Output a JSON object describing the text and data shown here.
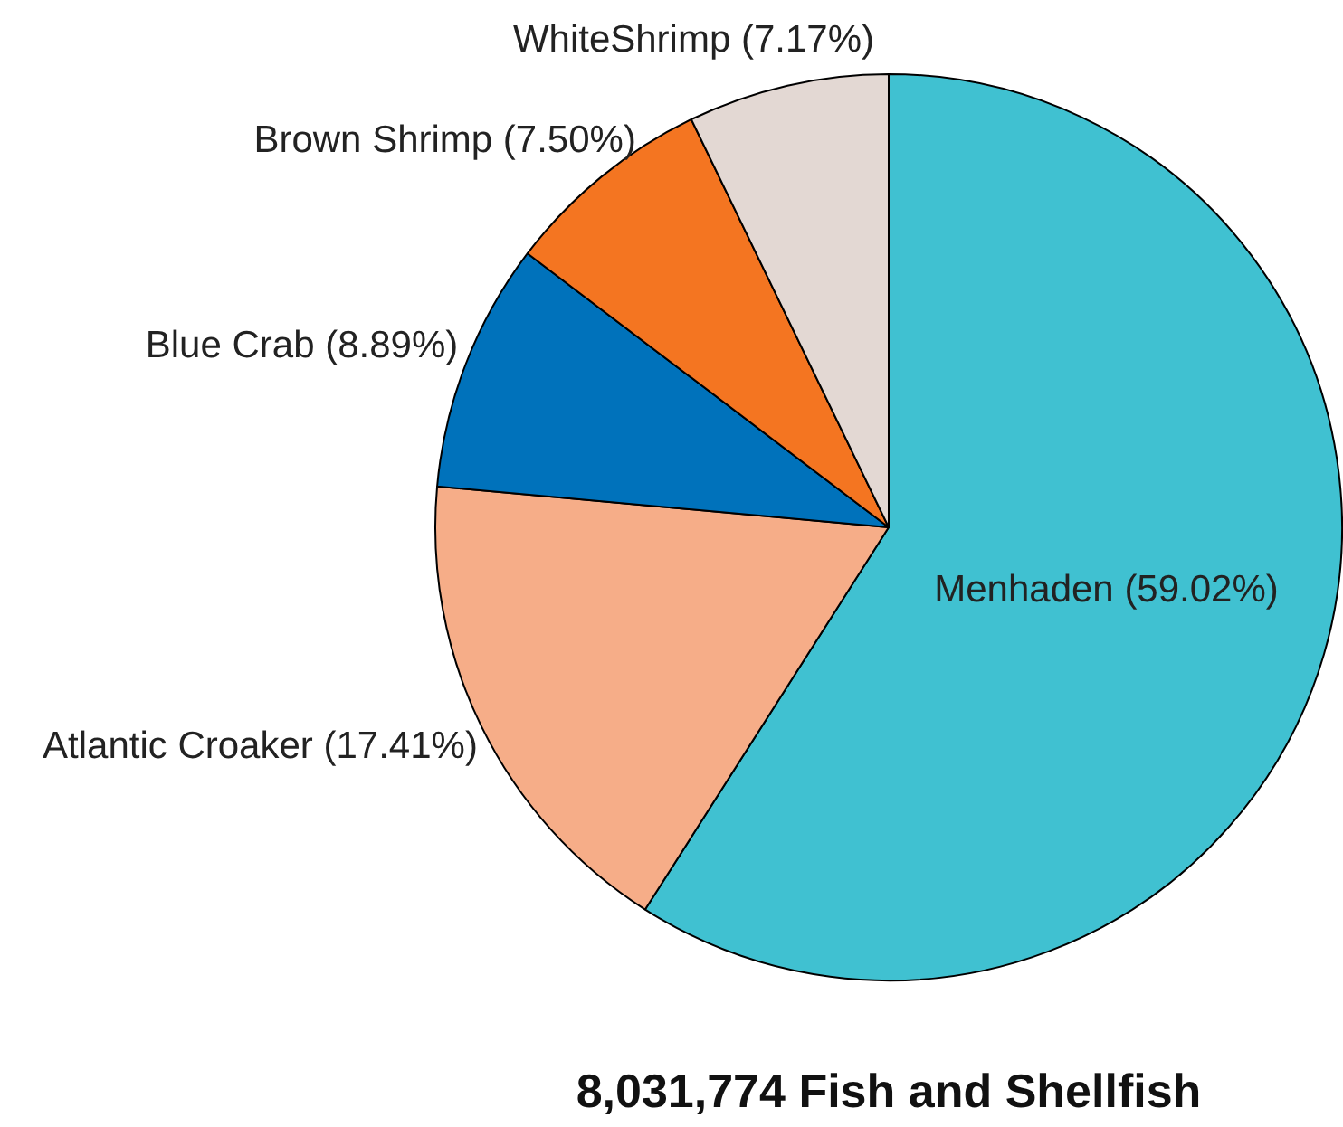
{
  "chart_data": {
    "type": "pie",
    "title": "8,031,774 Fish and Shellfish",
    "categories": [
      "Menhaden",
      "Atlantic Croaker",
      "Blue Crab",
      "Brown Shrimp",
      "WhiteShrimp"
    ],
    "values": [
      59.02,
      17.41,
      8.89,
      7.5,
      7.17
    ],
    "value_labels": [
      "(59.02%)",
      "(17.41%)",
      "(8.89%)",
      "(7.50%)",
      "(7.17%)"
    ],
    "colors": [
      "#40c1d1",
      "#f6ad88",
      "#0072bb",
      "#f47521",
      "#e3d8d3"
    ],
    "legend": false
  }
}
